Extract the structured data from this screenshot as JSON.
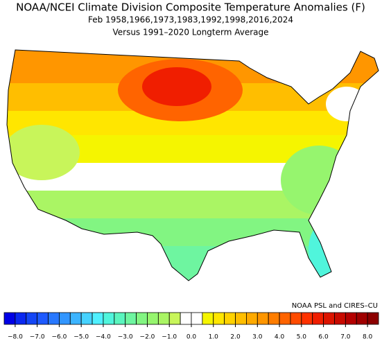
{
  "title": "NOAA/NCEI Climate Division Composite Temperature Anomalies (F)",
  "subtitle": "Feb  1958,1966,1973,1983,1992,1998,2016,2024",
  "subtitle2": "Versus 1991–2020 Longterm Average",
  "credit": "NOAA PSL and CIRES–CU",
  "colorbar": {
    "lim": [
      -8.5,
      8.5
    ],
    "colors": [
      "#0000e6",
      "#0a28f0",
      "#1446f5",
      "#1e5aff",
      "#2878ff",
      "#3296ff",
      "#3cb4ff",
      "#46d2ff",
      "#50f0ff",
      "#50f5dc",
      "#5af5be",
      "#6ef5a0",
      "#82f582",
      "#96f56e",
      "#aaf564",
      "#c8f55a",
      "#ffffff",
      "#ffffff",
      "#f5f500",
      "#ffe600",
      "#ffd200",
      "#ffbe00",
      "#ffaa00",
      "#ff9600",
      "#ff7d00",
      "#ff6400",
      "#ff4b00",
      "#ff3200",
      "#f01e00",
      "#dc1400",
      "#c80a00",
      "#b40000",
      "#a00000",
      "#8c0000"
    ],
    "ticks": [
      {
        "value": -8,
        "label": "−8.0"
      },
      {
        "value": -7,
        "label": "−7.0"
      },
      {
        "value": -6,
        "label": "−6.0"
      },
      {
        "value": -5,
        "label": "−5.0"
      },
      {
        "value": -4,
        "label": "−4.0"
      },
      {
        "value": -3,
        "label": "−3.0"
      },
      {
        "value": -2,
        "label": "−2.0"
      },
      {
        "value": -1,
        "label": "−1.0"
      },
      {
        "value": 0,
        "label": "0.0"
      },
      {
        "value": 1,
        "label": "1.0"
      },
      {
        "value": 2,
        "label": "2.0"
      },
      {
        "value": 3,
        "label": "3.0"
      },
      {
        "value": 4,
        "label": "4.0"
      },
      {
        "value": 5,
        "label": "5.0"
      },
      {
        "value": 6,
        "label": "6.0"
      },
      {
        "value": 7,
        "label": "7.0"
      },
      {
        "value": 8,
        "label": "8.0"
      }
    ]
  }
}
